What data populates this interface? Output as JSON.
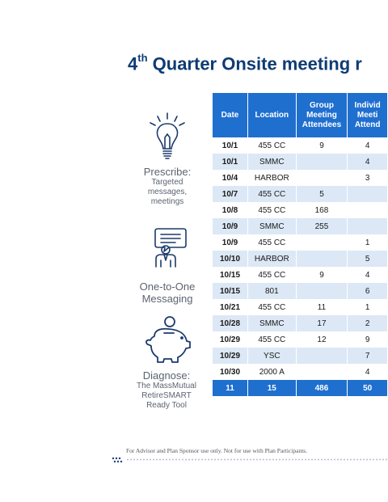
{
  "title": {
    "main": "4",
    "sup": "th",
    "rest": " Quarter Onsite meeting r"
  },
  "icons": {
    "prescribe": {
      "main": "Prescribe:",
      "sub": [
        "Targeted",
        "messages,",
        "meetings"
      ]
    },
    "messaging": {
      "main": [
        "One-to-One",
        "Messaging"
      ]
    },
    "diagnose": {
      "main": "Diagnose:",
      "sub": [
        "The MassMutual",
        "RetireSMART",
        "Ready Tool"
      ]
    }
  },
  "table": {
    "headers": {
      "date": "Date",
      "location": "Location",
      "group": [
        "Group",
        "Meeting",
        "Attendees"
      ],
      "individual": [
        "Individ",
        "Meeti",
        "Attend"
      ]
    },
    "rows": [
      {
        "date": "10/1",
        "location": "455 CC",
        "group": "9",
        "individual": "4"
      },
      {
        "date": "10/1",
        "location": "SMMC",
        "group": "",
        "individual": "4"
      },
      {
        "date": "10/4",
        "location": "HARBOR",
        "group": "",
        "individual": "3"
      },
      {
        "date": "10/7",
        "location": "455 CC",
        "group": "5",
        "individual": ""
      },
      {
        "date": "10/8",
        "location": "455 CC",
        "group": "168",
        "individual": ""
      },
      {
        "date": "10/9",
        "location": "SMMC",
        "group": "255",
        "individual": ""
      },
      {
        "date": "10/9",
        "location": "455 CC",
        "group": "",
        "individual": "1"
      },
      {
        "date": "10/10",
        "location": "HARBOR",
        "group": "",
        "individual": "5"
      },
      {
        "date": "10/15",
        "location": "455 CC",
        "group": "9",
        "individual": "4"
      },
      {
        "date": "10/15",
        "location": "801",
        "group": "",
        "individual": "6"
      },
      {
        "date": "10/21",
        "location": "455 CC",
        "group": "11",
        "individual": "1"
      },
      {
        "date": "10/28",
        "location": "SMMC",
        "group": "17",
        "individual": "2"
      },
      {
        "date": "10/29",
        "location": "455 CC",
        "group": "12",
        "individual": "9"
      },
      {
        "date": "10/29",
        "location": "YSC",
        "group": "",
        "individual": "7"
      },
      {
        "date": "10/30",
        "location": "2000 A",
        "group": "",
        "individual": "4"
      }
    ],
    "total": {
      "date": "11",
      "location": "15",
      "group": "486",
      "individual": "50"
    }
  },
  "footer": "For Advisor and Plan Sponsor use only. Not for use with Plan Participants.",
  "colors": {
    "title": "#0e3b74",
    "header_bg": "#1f6fcf",
    "stripe": "#dce8f5",
    "icon": "#1b3a6b"
  },
  "icon_names": [
    "lightbulb-icon",
    "presenter-icon",
    "piggy-bank-icon"
  ]
}
